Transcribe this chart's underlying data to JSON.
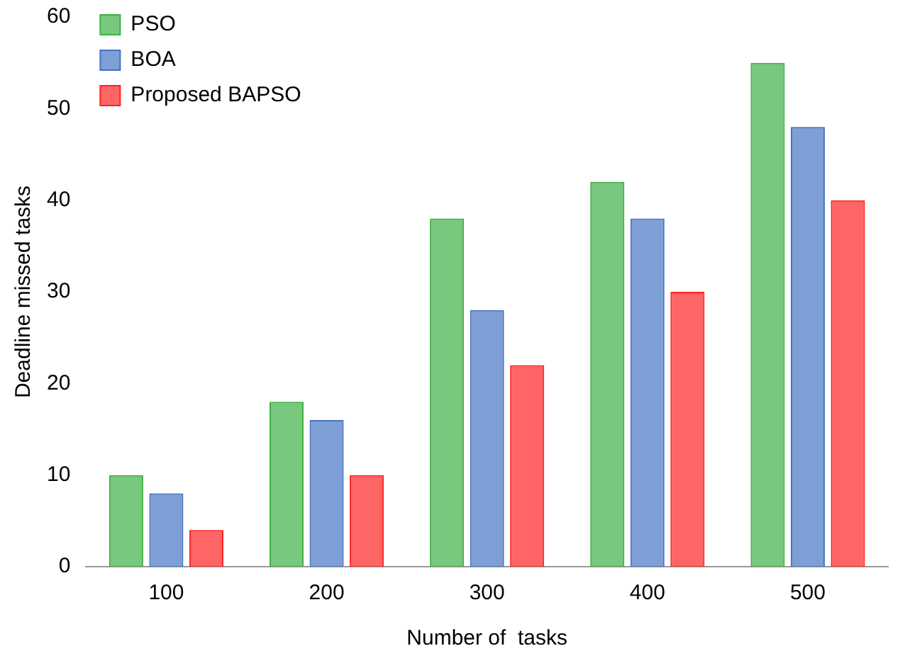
{
  "chart_data": {
    "type": "bar",
    "xlabel": "Number of  tasks",
    "ylabel": "Deadline missed tasks",
    "categories": [
      "100",
      "200",
      "300",
      "400",
      "500"
    ],
    "series": [
      {
        "name": "PSO",
        "color": "#3cb043",
        "values": [
          10,
          18,
          38,
          42,
          55
        ]
      },
      {
        "name": "BOA",
        "color": "#4472c4",
        "values": [
          8,
          16,
          28,
          38,
          48
        ]
      },
      {
        "name": "Proposed BAPSO",
        "color": "#ff2020",
        "values": [
          4,
          10,
          22,
          30,
          40
        ]
      }
    ],
    "ylim": [
      0,
      60
    ],
    "yticks": [
      0,
      10,
      20,
      30,
      40,
      50,
      60
    ],
    "grid": false,
    "legend": "top left"
  }
}
